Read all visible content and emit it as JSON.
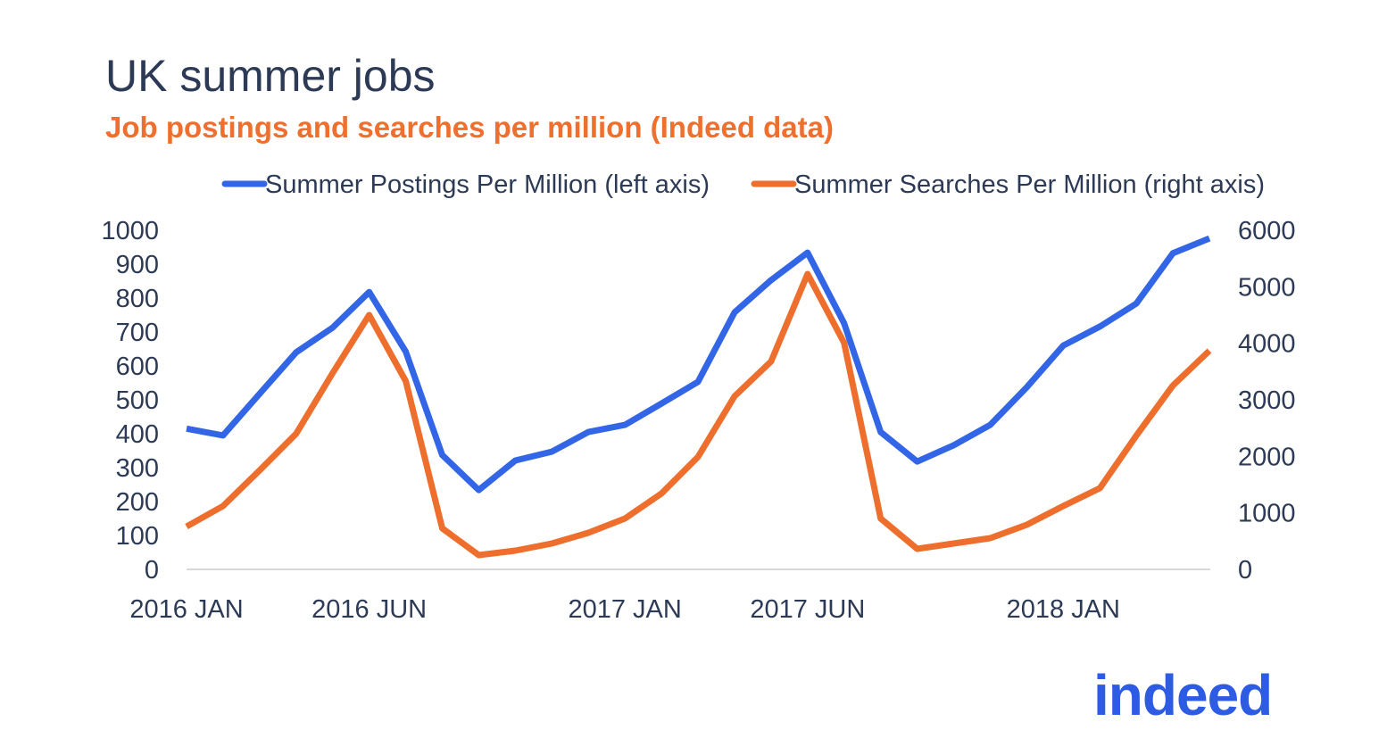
{
  "chart_data": {
    "type": "line",
    "title": "UK summer jobs",
    "subtitle": "Job postings and searches per million (Indeed data)",
    "x": [
      "2016-01",
      "2016-02",
      "2016-03",
      "2016-04",
      "2016-05",
      "2016-06",
      "2016-07",
      "2016-08",
      "2016-09",
      "2016-10",
      "2016-11",
      "2016-12",
      "2017-01",
      "2017-02",
      "2017-03",
      "2017-04",
      "2017-05",
      "2017-06",
      "2017-07",
      "2017-08",
      "2017-09",
      "2017-10",
      "2017-11",
      "2017-12",
      "2018-01",
      "2018-02",
      "2018-03",
      "2018-04",
      "2018-05"
    ],
    "x_tick_labels": [
      {
        "x": "2016-01",
        "label": "2016 JAN"
      },
      {
        "x": "2016-06",
        "label": "2016 JUN"
      },
      {
        "x": "2017-01",
        "label": "2017 JAN"
      },
      {
        "x": "2017-06",
        "label": "2017 JUN"
      },
      {
        "x": "2018-01",
        "label": "2018 JAN"
      }
    ],
    "y_left": {
      "range": [
        0,
        1000
      ],
      "ticks": [
        "0",
        "100",
        "200",
        "300",
        "400",
        "500",
        "600",
        "700",
        "800",
        "900",
        "1000"
      ]
    },
    "y_right": {
      "range": [
        0,
        6000
      ],
      "ticks": [
        "0",
        "1000",
        "2000",
        "3000",
        "4000",
        "5000",
        "6000"
      ]
    },
    "grid": false,
    "legend_position": "top",
    "series": [
      {
        "name": "Summer Postings Per Million (left axis)",
        "axis": "left",
        "color": "#3366e6",
        "values": [
          415,
          395,
          518,
          640,
          713,
          818,
          642,
          337,
          234,
          321,
          347,
          405,
          426,
          489,
          553,
          758,
          853,
          934,
          726,
          405,
          318,
          366,
          426,
          537,
          660,
          716,
          784,
          932,
          976
        ]
      },
      {
        "name": "Summer Searches Per Million (right axis)",
        "axis": "right",
        "color": "#ee6f2d",
        "values": [
          758,
          1121,
          1753,
          2400,
          3474,
          4500,
          3332,
          726,
          253,
          332,
          458,
          647,
          900,
          1342,
          1990,
          3063,
          3679,
          5226,
          4011,
          900,
          363,
          458,
          553,
          790,
          1121,
          1437,
          2368,
          3253,
          3868
        ]
      }
    ]
  },
  "logo": {
    "text": "indeed"
  }
}
